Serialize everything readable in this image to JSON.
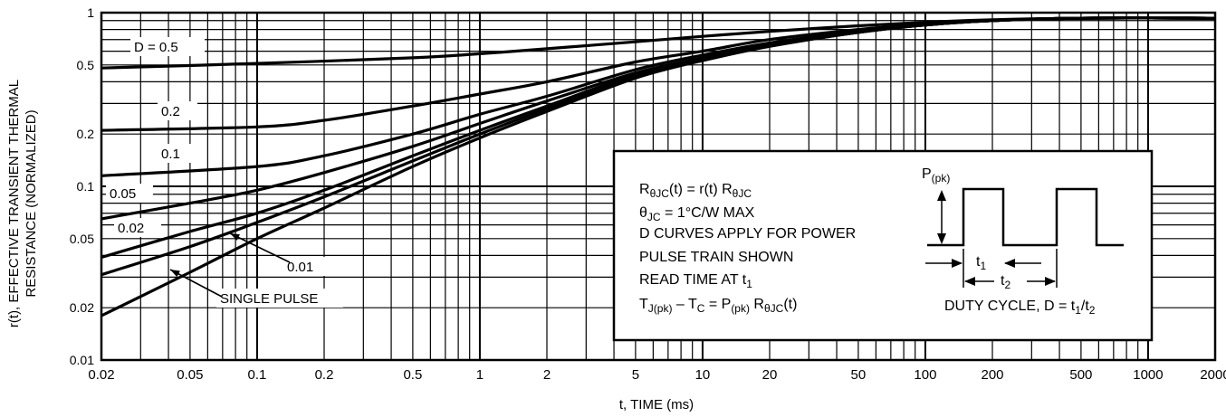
{
  "chart_data": {
    "type": "line",
    "x_scale": "log",
    "y_scale": "log",
    "xlim": [
      0.02,
      2000
    ],
    "ylim": [
      0.01,
      1
    ],
    "xlabel": "t, TIME (ms)",
    "ylabel_line1": "r(t), EFFECTIVE TRANSIENT THERMAL",
    "ylabel_line2": "RESISTANCE (NORMALIZED)",
    "grid": true,
    "x_ticks": [
      {
        "value": 0.02,
        "label": "0.02"
      },
      {
        "value": 0.05,
        "label": "0.05"
      },
      {
        "value": 0.1,
        "label": "0.1"
      },
      {
        "value": 0.2,
        "label": "0.2"
      },
      {
        "value": 0.5,
        "label": "0.5"
      },
      {
        "value": 1,
        "label": "1"
      },
      {
        "value": 2,
        "label": "2"
      },
      {
        "value": 5,
        "label": "5"
      },
      {
        "value": 10,
        "label": "10"
      },
      {
        "value": 20,
        "label": "20"
      },
      {
        "value": 50,
        "label": "50"
      },
      {
        "value": 100,
        "label": "100"
      },
      {
        "value": 200,
        "label": "200"
      },
      {
        "value": 500,
        "label": "500"
      },
      {
        "value": 1000,
        "label": "1000"
      },
      {
        "value": 2000,
        "label": "2000"
      }
    ],
    "y_ticks": [
      {
        "value": 1,
        "label": "1"
      },
      {
        "value": 0.5,
        "label": "0.5"
      },
      {
        "value": 0.2,
        "label": "0.2"
      },
      {
        "value": 0.1,
        "label": "0.1"
      },
      {
        "value": 0.05,
        "label": "0.05"
      },
      {
        "value": 0.02,
        "label": "0.02"
      },
      {
        "value": 0.01,
        "label": "0.01"
      }
    ],
    "series": [
      {
        "name": "D = 0.5",
        "x": [
          0.02,
          0.1,
          0.5,
          1,
          2,
          5,
          10,
          20,
          50,
          100,
          200,
          500,
          2000
        ],
        "y": [
          0.48,
          0.51,
          0.55,
          0.58,
          0.62,
          0.68,
          0.73,
          0.78,
          0.84,
          0.88,
          0.91,
          0.93,
          0.93
        ]
      },
      {
        "name": "0.2",
        "x": [
          0.02,
          0.1,
          0.2,
          0.5,
          1,
          2,
          5,
          10,
          20,
          50,
          100,
          200,
          500,
          2000
        ],
        "y": [
          0.21,
          0.22,
          0.24,
          0.29,
          0.34,
          0.4,
          0.52,
          0.6,
          0.7,
          0.8,
          0.86,
          0.9,
          0.93,
          0.93
        ]
      },
      {
        "name": "0.1",
        "x": [
          0.02,
          0.1,
          0.2,
          0.5,
          1,
          2,
          5,
          10,
          20,
          50,
          100,
          200,
          500,
          2000
        ],
        "y": [
          0.115,
          0.13,
          0.15,
          0.2,
          0.26,
          0.33,
          0.47,
          0.57,
          0.67,
          0.78,
          0.85,
          0.9,
          0.93,
          0.93
        ]
      },
      {
        "name": "0.05",
        "x": [
          0.02,
          0.05,
          0.1,
          0.2,
          0.5,
          1,
          2,
          5,
          10,
          20,
          50,
          100,
          200,
          500,
          2000
        ],
        "y": [
          0.065,
          0.08,
          0.095,
          0.12,
          0.17,
          0.23,
          0.31,
          0.45,
          0.55,
          0.66,
          0.78,
          0.85,
          0.9,
          0.93,
          0.93
        ]
      },
      {
        "name": "0.02",
        "x": [
          0.02,
          0.05,
          0.1,
          0.2,
          0.5,
          1,
          2,
          5,
          10,
          20,
          50,
          100,
          200,
          500,
          2000
        ],
        "y": [
          0.039,
          0.055,
          0.07,
          0.095,
          0.15,
          0.21,
          0.29,
          0.44,
          0.54,
          0.65,
          0.77,
          0.85,
          0.9,
          0.93,
          0.93
        ]
      },
      {
        "name": "0.01",
        "x": [
          0.02,
          0.05,
          0.1,
          0.2,
          0.5,
          1,
          2,
          5,
          10,
          20,
          50,
          100,
          200,
          500,
          2000
        ],
        "y": [
          0.031,
          0.045,
          0.062,
          0.087,
          0.14,
          0.2,
          0.28,
          0.43,
          0.53,
          0.64,
          0.77,
          0.85,
          0.9,
          0.93,
          0.93
        ]
      },
      {
        "name": "SINGLE PULSE",
        "x": [
          0.02,
          0.05,
          0.1,
          0.2,
          0.5,
          1,
          2,
          5,
          10,
          20,
          50,
          100,
          200,
          500,
          2000
        ],
        "y": [
          0.018,
          0.032,
          0.05,
          0.075,
          0.13,
          0.19,
          0.27,
          0.42,
          0.53,
          0.64,
          0.77,
          0.85,
          0.9,
          0.93,
          0.93
        ]
      }
    ],
    "curve_labels": [
      {
        "text": "D = 0.5",
        "series": "D = 0.5"
      },
      {
        "text": "0.2",
        "series": "0.2"
      },
      {
        "text": "0.1",
        "series": "0.1"
      },
      {
        "text": "0.05",
        "series": "0.05"
      },
      {
        "text": "0.02",
        "series": "0.02"
      },
      {
        "text": "0.01",
        "series": "0.01"
      },
      {
        "text": "SINGLE PULSE",
        "series": "SINGLE PULSE"
      }
    ],
    "annotation_box": {
      "eq1_main": "R",
      "eq1_sub": "θJC",
      "eq1_mid": "(t) = r(t) R",
      "eq1_sub2": "θJC",
      "eq2_main": "θ",
      "eq2_sub": "JC",
      "eq2_rest": " = 1°C/W MAX",
      "line3": "D CURVES APPLY FOR POWER",
      "line4": "PULSE TRAIN SHOWN",
      "line5_main": "READ TIME AT t",
      "line5_sub": "1",
      "line6_a": "T",
      "line6_a_sub": "J(pk)",
      "line6_b": " – T",
      "line6_b_sub": "C",
      "line6_c": " = P",
      "line6_c_sub": "(pk)",
      "line6_d": " R",
      "line6_d_sub": "θJC",
      "line6_e": "(t)",
      "pulse_label_main": "P",
      "pulse_label_sub": "(pk)",
      "t1_main": "t",
      "t1_sub": "1",
      "t2_main": "t",
      "t2_sub": "2",
      "duty_main": "DUTY CYCLE, D = t",
      "duty_sub1": "1",
      "duty_slash": "/t",
      "duty_sub2": "2"
    }
  }
}
